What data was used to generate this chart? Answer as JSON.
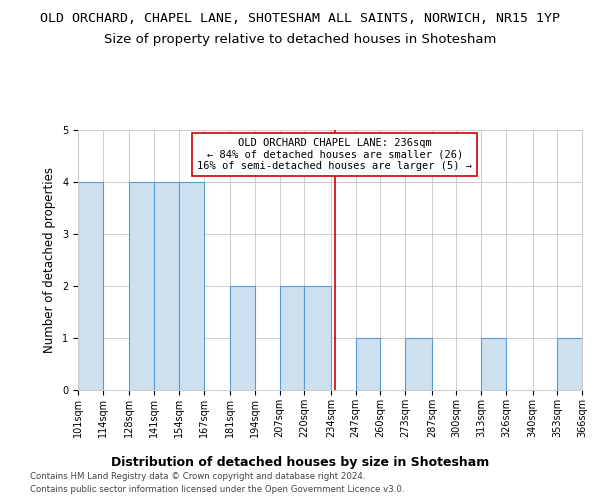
{
  "title": "OLD ORCHARD, CHAPEL LANE, SHOTESHAM ALL SAINTS, NORWICH, NR15 1YP",
  "subtitle": "Size of property relative to detached houses in Shotesham",
  "xlabel": "Distribution of detached houses by size in Shotesham",
  "ylabel": "Number of detached properties",
  "footer_line1": "Contains HM Land Registry data © Crown copyright and database right 2024.",
  "footer_line2": "Contains public sector information licensed under the Open Government Licence v3.0.",
  "bin_edges": [
    101,
    114,
    128,
    141,
    154,
    167,
    181,
    194,
    207,
    220,
    234,
    247,
    260,
    273,
    287,
    300,
    313,
    326,
    340,
    353,
    366
  ],
  "bin_counts": [
    4,
    0,
    4,
    4,
    4,
    0,
    2,
    0,
    2,
    2,
    0,
    1,
    0,
    1,
    0,
    0,
    1,
    0,
    0,
    1
  ],
  "bar_color": "#cce0f0",
  "bar_edge_color": "#5b9bd5",
  "property_size": 236,
  "vline_color": "#cc0000",
  "annotation_text": "OLD ORCHARD CHAPEL LANE: 236sqm\n← 84% of detached houses are smaller (26)\n16% of semi-detached houses are larger (5) →",
  "annotation_box_color": "#ffffff",
  "annotation_box_edge_color": "#cc0000",
  "ylim": [
    0,
    5
  ],
  "yticks": [
    0,
    1,
    2,
    3,
    4,
    5
  ],
  "background_color": "#ffffff",
  "grid_color": "#cccccc",
  "title_fontsize": 9.5,
  "subtitle_fontsize": 9.5,
  "xlabel_fontsize": 9,
  "ylabel_fontsize": 8.5,
  "tick_fontsize": 7,
  "annotation_fontsize": 7.5,
  "footer_fontsize": 6.2
}
